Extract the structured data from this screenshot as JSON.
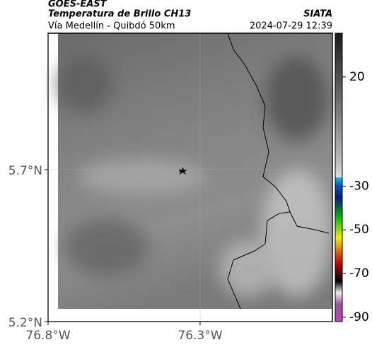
{
  "header": {
    "title": "GOES-EAST",
    "subtitle": "Temperatura de Brillo CH13",
    "location": "Vía Medellín - Quibdó 50km",
    "source": "SIATA",
    "timestamp": "2024-07-29 12:39"
  },
  "map": {
    "xlim": [
      -76.8,
      -75.865
    ],
    "ylim": [
      5.2,
      6.149
    ],
    "xticks": [
      {
        "value": -76.8,
        "label": "76.8°W"
      },
      {
        "value": -76.3,
        "label": "76.3°W"
      }
    ],
    "yticks": [
      {
        "value": 5.7,
        "label": "5.7°N"
      },
      {
        "value": 5.2,
        "label": "5.2°N"
      }
    ]
  },
  "colorbar": {
    "lim": [
      -92,
      40
    ],
    "ticks": [
      20,
      -30,
      -50,
      -70,
      -90
    ]
  }
}
